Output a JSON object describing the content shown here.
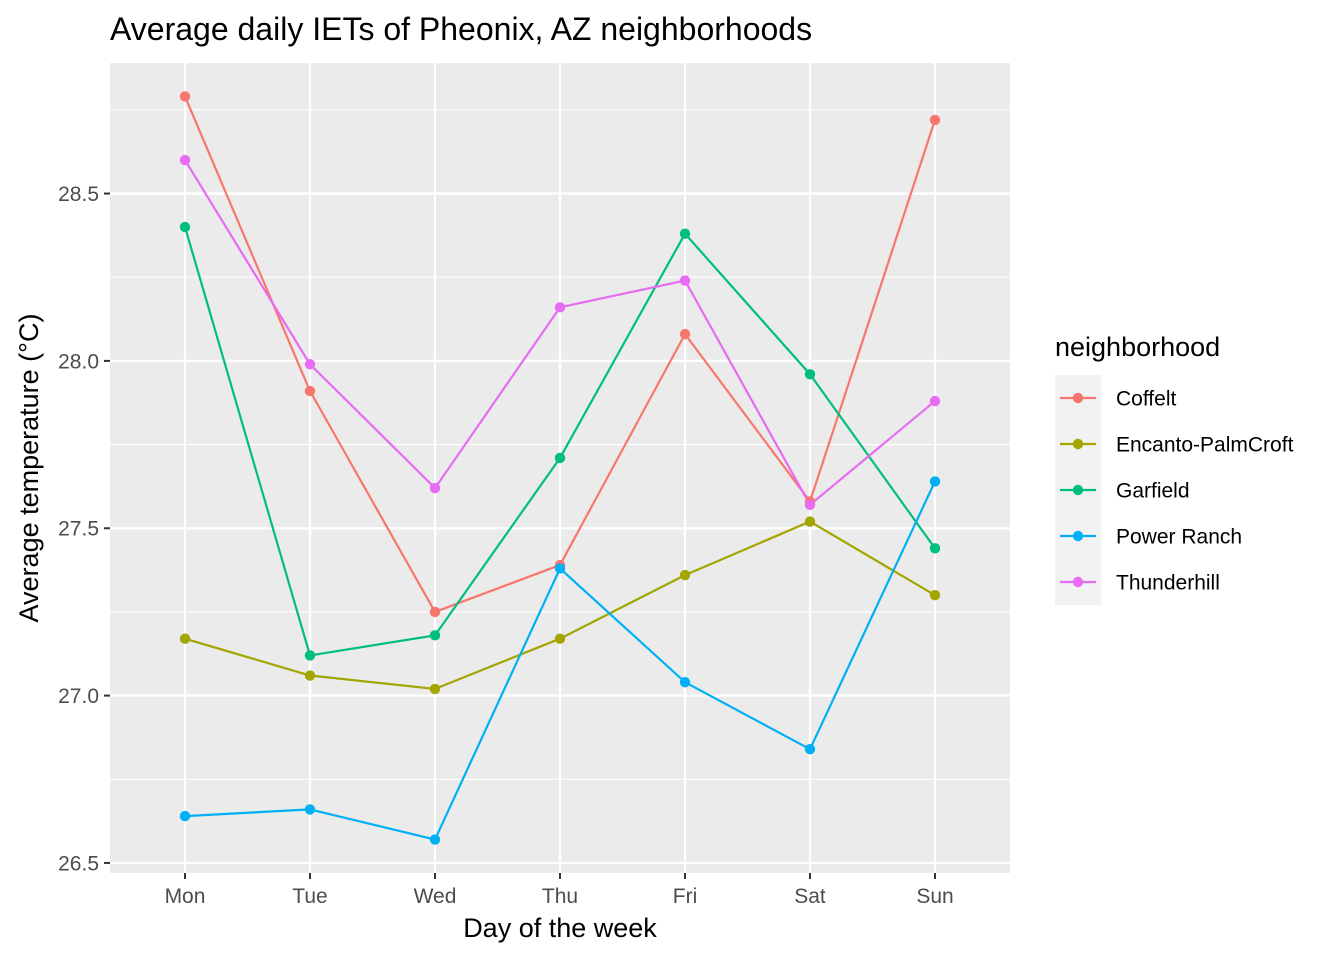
{
  "chart_data": {
    "type": "line",
    "title": "Average daily IETs of Pheonix, AZ neighborhoods",
    "xlabel": "Day of the week",
    "ylabel": "Average temperature (°C)",
    "categories": [
      "Mon",
      "Tue",
      "Wed",
      "Thu",
      "Fri",
      "Sat",
      "Sun"
    ],
    "ylim": [
      26.47,
      28.89
    ],
    "yticks": [
      26.5,
      27.0,
      27.5,
      28.0,
      28.5
    ],
    "ytick_labels": [
      "26.5",
      "27.0",
      "27.5",
      "28.0",
      "28.5"
    ],
    "grid": true,
    "legend": {
      "title": "neighborhood",
      "position": "right"
    },
    "series": [
      {
        "name": "Coffelt",
        "color": "#F8766D",
        "values": [
          28.79,
          27.91,
          27.25,
          27.39,
          28.08,
          27.58,
          28.72
        ]
      },
      {
        "name": "Encanto-PalmCroft",
        "color": "#A3A500",
        "values": [
          27.17,
          27.06,
          27.02,
          27.17,
          27.36,
          27.52,
          27.3
        ]
      },
      {
        "name": "Garfield",
        "color": "#00BF7D",
        "values": [
          28.4,
          27.12,
          27.18,
          27.71,
          28.38,
          27.96,
          27.44
        ]
      },
      {
        "name": "Power Ranch",
        "color": "#00B0F6",
        "values": [
          26.64,
          26.66,
          26.57,
          27.38,
          27.04,
          26.84,
          27.64
        ]
      },
      {
        "name": "Thunderhill",
        "color": "#E76BF3",
        "values": [
          28.6,
          27.99,
          27.62,
          28.16,
          28.24,
          27.57,
          27.88
        ]
      }
    ]
  }
}
